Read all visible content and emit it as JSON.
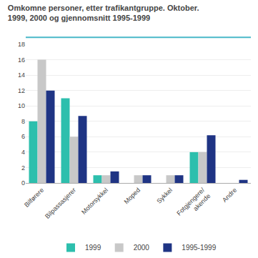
{
  "chart_data": {
    "type": "bar",
    "title": "Omkomne personer, etter trafikantgruppe. Oktober.",
    "subtitle": "1999, 2000 og gjennomsnitt 1995-1999",
    "categories": [
      "Bilførere",
      "Bilpassasjerer",
      "Motorsykkel",
      "Moped",
      "Sykkel",
      "Fotgjengere/\nakende",
      "Andre"
    ],
    "series": [
      {
        "name": "1999",
        "color": "#2dbfad",
        "values": [
          8,
          11,
          1,
          0,
          0,
          4,
          0
        ]
      },
      {
        "name": "2000",
        "color": "#c8c8c8",
        "values": [
          16,
          6,
          1,
          1,
          1,
          4,
          0
        ]
      },
      {
        "name": "1995-1999",
        "color": "#1f3484",
        "values": [
          12,
          8.7,
          1.5,
          1.0,
          1.0,
          6.2,
          0.4
        ]
      }
    ],
    "ylim": [
      0,
      18
    ],
    "yticks": [
      0,
      2,
      4,
      6,
      8,
      10,
      12,
      14,
      16,
      18
    ],
    "grid": true,
    "legend": "bottom"
  }
}
